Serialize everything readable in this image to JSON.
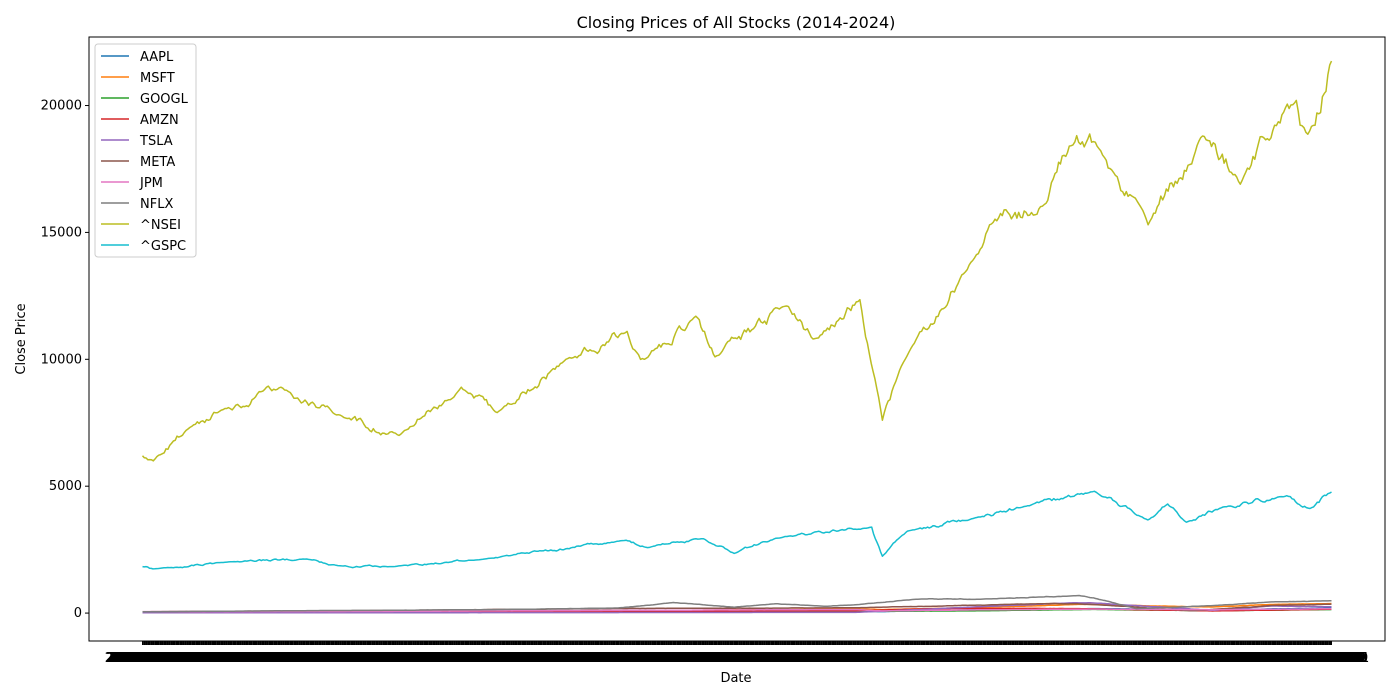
{
  "chart_data": {
    "type": "line",
    "title": "Closing Prices of All Stocks (2014-2024)",
    "xlabel": "Date",
    "ylabel": "Close Price",
    "x_range": [
      "2014-01-02",
      "2024-01-01"
    ],
    "ylim": [
      -1100,
      22700
    ],
    "yticks": [
      0,
      5000,
      10000,
      15000,
      20000
    ],
    "grid": false,
    "legend_position": "top-left",
    "series": [
      {
        "name": "AAPL",
        "color": "#1f77b4",
        "points": [
          [
            "2014-01-02",
            19
          ],
          [
            "2016-01-01",
            26
          ],
          [
            "2018-01-01",
            42
          ],
          [
            "2020-01-01",
            75
          ],
          [
            "2020-03-20",
            57
          ],
          [
            "2021-01-01",
            132
          ],
          [
            "2022-01-01",
            178
          ],
          [
            "2023-01-01",
            130
          ],
          [
            "2024-01-01",
            192
          ]
        ]
      },
      {
        "name": "MSFT",
        "color": "#ff7f0e",
        "points": [
          [
            "2014-01-02",
            37
          ],
          [
            "2016-01-01",
            55
          ],
          [
            "2018-01-01",
            86
          ],
          [
            "2020-01-01",
            160
          ],
          [
            "2020-03-20",
            137
          ],
          [
            "2021-01-01",
            222
          ],
          [
            "2021-11-19",
            343
          ],
          [
            "2022-01-01",
            336
          ],
          [
            "2023-01-01",
            239
          ],
          [
            "2023-07-01",
            340
          ],
          [
            "2024-01-01",
            376
          ]
        ]
      },
      {
        "name": "GOOGL",
        "color": "#2ca02c",
        "points": [
          [
            "2014-01-02",
            28
          ],
          [
            "2016-01-01",
            38
          ],
          [
            "2018-01-01",
            54
          ],
          [
            "2020-01-01",
            68
          ],
          [
            "2021-01-01",
            88
          ],
          [
            "2022-01-01",
            145
          ],
          [
            "2023-01-01",
            89
          ],
          [
            "2024-01-01",
            140
          ]
        ]
      },
      {
        "name": "AMZN",
        "color": "#d62728",
        "points": [
          [
            "2014-01-02",
            20
          ],
          [
            "2016-01-01",
            33
          ],
          [
            "2018-01-01",
            59
          ],
          [
            "2020-01-01",
            95
          ],
          [
            "2020-09-01",
            175
          ],
          [
            "2021-07-01",
            185
          ],
          [
            "2022-01-01",
            167
          ],
          [
            "2023-01-01",
            84
          ],
          [
            "2024-01-01",
            151
          ]
        ]
      },
      {
        "name": "TSLA",
        "color": "#9467bd",
        "points": [
          [
            "2014-01-02",
            10
          ],
          [
            "2016-01-01",
            15
          ],
          [
            "2018-01-01",
            21
          ],
          [
            "2020-01-01",
            28
          ],
          [
            "2021-01-01",
            243
          ],
          [
            "2021-11-04",
            409
          ],
          [
            "2022-01-01",
            399
          ],
          [
            "2023-01-01",
            108
          ],
          [
            "2023-07-01",
            280
          ],
          [
            "2024-01-01",
            248
          ]
        ]
      },
      {
        "name": "META",
        "color": "#8c564b",
        "points": [
          [
            "2014-01-02",
            55
          ],
          [
            "2016-01-01",
            102
          ],
          [
            "2018-01-01",
            181
          ],
          [
            "2020-01-01",
            209
          ],
          [
            "2021-09-01",
            380
          ],
          [
            "2022-01-01",
            338
          ],
          [
            "2022-11-01",
            90
          ],
          [
            "2023-07-01",
            300
          ],
          [
            "2024-01-01",
            353
          ]
        ]
      },
      {
        "name": "JPM",
        "color": "#e377c2",
        "points": [
          [
            "2014-01-02",
            58
          ],
          [
            "2016-01-01",
            66
          ],
          [
            "2018-01-01",
            107
          ],
          [
            "2020-01-01",
            139
          ],
          [
            "2020-03-20",
            85
          ],
          [
            "2021-01-01",
            127
          ],
          [
            "2022-01-01",
            158
          ],
          [
            "2023-01-01",
            134
          ],
          [
            "2024-01-01",
            170
          ]
        ]
      },
      {
        "name": "NFLX",
        "color": "#7f7f7f",
        "points": [
          [
            "2014-01-02",
            51
          ],
          [
            "2015-07-01",
            100
          ],
          [
            "2016-01-01",
            107
          ],
          [
            "2017-01-01",
            140
          ],
          [
            "2018-01-01",
            201
          ],
          [
            "2018-06-20",
            416
          ],
          [
            "2018-12-24",
            233
          ],
          [
            "2019-05-01",
            370
          ],
          [
            "2019-10-01",
            267
          ],
          [
            "2020-01-01",
            329
          ],
          [
            "2020-07-10",
            548
          ],
          [
            "2021-01-01",
            540
          ],
          [
            "2021-11-17",
            691
          ],
          [
            "2022-01-01",
            597
          ],
          [
            "2022-05-11",
            174
          ],
          [
            "2023-01-01",
            294
          ],
          [
            "2023-07-01",
            440
          ],
          [
            "2024-01-01",
            486
          ]
        ]
      },
      {
        "name": "^NSEI",
        "color": "#bcbd22",
        "points": [
          [
            "2014-01-02",
            6200
          ],
          [
            "2014-02-04",
            6000
          ],
          [
            "2014-05-16",
            7200
          ],
          [
            "2014-09-01",
            8000
          ],
          [
            "2015-03-03",
            8900
          ],
          [
            "2015-09-01",
            7800
          ],
          [
            "2016-02-29",
            7000
          ],
          [
            "2016-09-07",
            8900
          ],
          [
            "2016-12-26",
            7900
          ],
          [
            "2017-07-25",
            10000
          ],
          [
            "2018-01-29",
            11100
          ],
          [
            "2018-03-23",
            10000
          ],
          [
            "2018-08-28",
            11700
          ],
          [
            "2018-10-26",
            10100
          ],
          [
            "2019-06-03",
            12100
          ],
          [
            "2019-08-23",
            10800
          ],
          [
            "2020-01-14",
            12350
          ],
          [
            "2020-03-23",
            7600
          ],
          [
            "2020-06-01",
            10000
          ],
          [
            "2020-12-31",
            14000
          ],
          [
            "2021-02-15",
            15300
          ],
          [
            "2021-08-02",
            16100
          ],
          [
            "2021-10-18",
            18400
          ],
          [
            "2022-01-17",
            18300
          ],
          [
            "2022-06-17",
            15300
          ],
          [
            "2022-12-01",
            18800
          ],
          [
            "2023-03-27",
            16900
          ],
          [
            "2023-09-15",
            20200
          ],
          [
            "2023-10-26",
            19000
          ],
          [
            "2024-01-01",
            21750
          ]
        ]
      },
      {
        "name": "^GSPC",
        "color": "#17becf",
        "points": [
          [
            "2014-01-02",
            1830
          ],
          [
            "2014-02-03",
            1740
          ],
          [
            "2014-09-18",
            2010
          ],
          [
            "2015-05-21",
            2130
          ],
          [
            "2015-08-25",
            1870
          ],
          [
            "2016-02-11",
            1830
          ],
          [
            "2016-11-01",
            2100
          ],
          [
            "2018-01-26",
            2870
          ],
          [
            "2018-04-02",
            2580
          ],
          [
            "2018-09-20",
            2930
          ],
          [
            "2018-12-24",
            2350
          ],
          [
            "2019-05-01",
            2950
          ],
          [
            "2020-02-19",
            3390
          ],
          [
            "2020-03-23",
            2240
          ],
          [
            "2020-06-08",
            3230
          ],
          [
            "2021-01-01",
            3750
          ],
          [
            "2021-06-01",
            4200
          ],
          [
            "2022-01-03",
            4800
          ],
          [
            "2022-06-16",
            3670
          ],
          [
            "2022-08-16",
            4300
          ],
          [
            "2022-10-12",
            3580
          ],
          [
            "2023-02-02",
            4180
          ],
          [
            "2023-07-31",
            4590
          ],
          [
            "2023-10-27",
            4120
          ],
          [
            "2024-01-01",
            4770
          ]
        ]
      }
    ]
  }
}
